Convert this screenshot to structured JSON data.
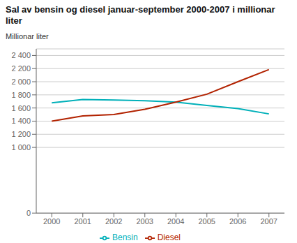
{
  "chart_data": {
    "type": "line",
    "title": "Sal av bensin og diesel januar-september 2000-2007 i millionar\nliter",
    "y_label": "Millionar liter",
    "x": [
      2000,
      2001,
      2002,
      2003,
      2004,
      2005,
      2006,
      2007
    ],
    "series": [
      {
        "name": "Bensin",
        "color": "#00b0b9",
        "values": [
          1680,
          1730,
          1720,
          1710,
          1690,
          1640,
          1590,
          1510
        ]
      },
      {
        "name": "Diesel",
        "color": "#b22200",
        "values": [
          1400,
          1480,
          1500,
          1580,
          1690,
          1810,
          2000,
          2185
        ]
      }
    ],
    "xlim": [
      1999.5,
      2007.5
    ],
    "xticks": [
      2000,
      2001,
      2002,
      2003,
      2004,
      2005,
      2006,
      2007
    ],
    "ylim": [
      0,
      2500
    ],
    "yticks": [
      0,
      {
        "value": 1000,
        "label": "1 000"
      },
      {
        "value": 1200,
        "label": "1 200"
      },
      {
        "value": 1400,
        "label": "1 400"
      },
      {
        "value": 1600,
        "label": "1 600"
      },
      {
        "value": 1800,
        "label": "1 800"
      },
      {
        "value": 2000,
        "label": "2 000"
      },
      {
        "value": 2200,
        "label": "2 200"
      },
      {
        "value": 2400,
        "label": "2 400"
      }
    ],
    "grid": "y",
    "legend": "bottom"
  }
}
